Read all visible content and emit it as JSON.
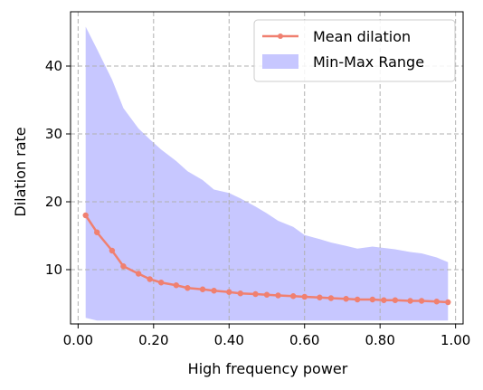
{
  "chart_data": {
    "type": "line",
    "title": "",
    "xlabel": "High frequency power",
    "ylabel": "Dilation rate",
    "xlim": [
      -0.02,
      1.02
    ],
    "ylim": [
      2.0,
      48.0
    ],
    "xticks": [
      0.0,
      0.2,
      0.4,
      0.6,
      0.8,
      1.0
    ],
    "xtick_labels": [
      "0.00",
      "0.20",
      "0.40",
      "0.60",
      "0.80",
      "1.00"
    ],
    "yticks": [
      10,
      20,
      30,
      40
    ],
    "ytick_labels": [
      "10",
      "20",
      "30",
      "40"
    ],
    "grid": true,
    "legend_position": "top-right",
    "series": [
      {
        "name": "Mean dilation",
        "kind": "line-marker",
        "color": "#f08070",
        "x": [
          0.02,
          0.05,
          0.09,
          0.12,
          0.16,
          0.19,
          0.22,
          0.26,
          0.29,
          0.33,
          0.36,
          0.4,
          0.43,
          0.47,
          0.5,
          0.53,
          0.57,
          0.6,
          0.64,
          0.67,
          0.71,
          0.74,
          0.78,
          0.81,
          0.84,
          0.88,
          0.91,
          0.95,
          0.98
        ],
        "y": [
          18.0,
          15.5,
          12.8,
          10.5,
          9.4,
          8.6,
          8.1,
          7.7,
          7.3,
          7.1,
          6.9,
          6.7,
          6.5,
          6.4,
          6.3,
          6.2,
          6.1,
          6.0,
          5.9,
          5.8,
          5.7,
          5.6,
          5.6,
          5.5,
          5.5,
          5.4,
          5.4,
          5.3,
          5.2
        ]
      },
      {
        "name": "Min-Max Range",
        "kind": "band",
        "color": "#c7c7ff",
        "x": [
          0.02,
          0.05,
          0.09,
          0.12,
          0.16,
          0.19,
          0.22,
          0.26,
          0.29,
          0.33,
          0.36,
          0.4,
          0.43,
          0.47,
          0.5,
          0.53,
          0.57,
          0.6,
          0.64,
          0.67,
          0.71,
          0.74,
          0.78,
          0.81,
          0.84,
          0.88,
          0.91,
          0.95,
          0.98
        ],
        "upper": [
          45.8,
          42.5,
          38.0,
          33.8,
          30.8,
          29.2,
          27.7,
          26.0,
          24.5,
          23.2,
          21.8,
          21.3,
          20.5,
          19.3,
          18.3,
          17.2,
          16.3,
          15.1,
          14.5,
          14.0,
          13.5,
          13.1,
          13.4,
          13.2,
          13.0,
          12.6,
          12.4,
          11.8,
          11.1
        ],
        "lower": [
          2.9,
          2.5,
          2.5,
          2.5,
          2.5,
          2.5,
          2.5,
          2.5,
          2.5,
          2.5,
          2.5,
          2.5,
          2.5,
          2.5,
          2.5,
          2.5,
          2.5,
          2.5,
          2.5,
          2.5,
          2.5,
          2.5,
          2.5,
          2.5,
          2.5,
          2.5,
          2.5,
          2.5,
          2.5
        ]
      }
    ]
  }
}
